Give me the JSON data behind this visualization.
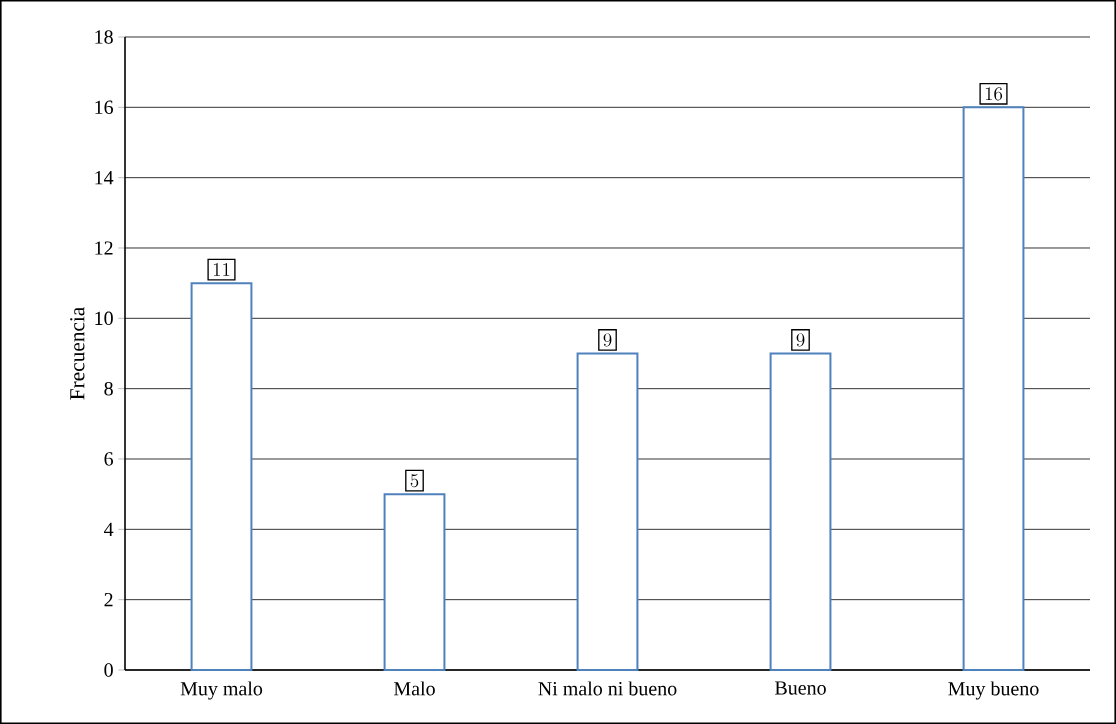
{
  "chart_data": {
    "type": "bar",
    "ylabel": "Frecuencia",
    "categories": [
      "Muy malo",
      "Malo",
      "Ni malo ni bueno",
      "Bueno",
      "Muy bueno"
    ],
    "values": [
      11,
      5,
      9,
      9,
      16
    ],
    "color": "#4f81bd",
    "ylim": [
      0,
      18
    ],
    "yticks": [
      0,
      2,
      4,
      6,
      8,
      10,
      12,
      14,
      16,
      18
    ],
    "grid": "y",
    "data_labels": true
  }
}
